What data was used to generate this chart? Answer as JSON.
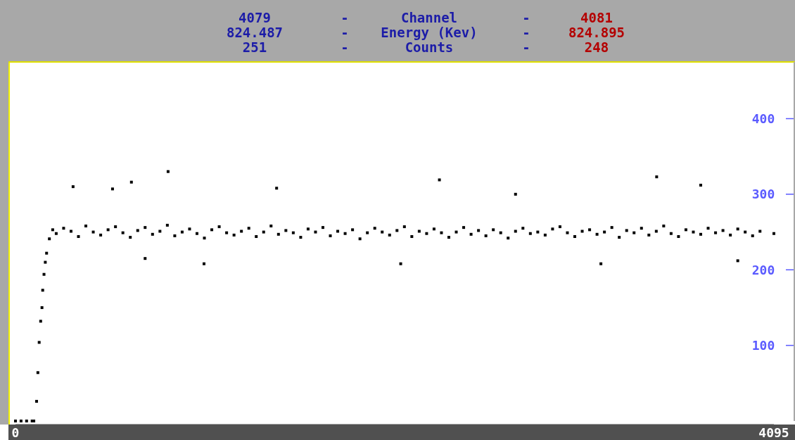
{
  "chart_data": {
    "type": "scatter",
    "annotations": [
      "4079",
      "-",
      "Channel",
      "-",
      "4081",
      "824.487",
      "-",
      "Energy (Kev)",
      "-",
      "824.895",
      "251",
      "-",
      "Counts",
      "-",
      "248"
    ],
    "xlim": [
      0,
      4095
    ],
    "xticks": [
      0,
      4095
    ],
    "ylim": [
      0,
      475
    ],
    "yticks": [
      100,
      200,
      300,
      400
    ],
    "grid": false,
    "marker": "square",
    "series": [
      {
        "color": "#000000",
        "x": [
          0,
          30,
          60,
          90,
          99,
          114,
          121,
          128,
          136,
          143,
          147,
          154,
          161,
          168,
          183,
          201,
          220,
          260,
          300,
          340,
          380,
          420,
          460,
          500,
          540,
          580,
          620,
          660,
          700,
          740,
          780,
          820,
          860,
          900,
          940,
          980,
          1020,
          1060,
          1100,
          1140,
          1180,
          1220,
          1260,
          1300,
          1340,
          1380,
          1420,
          1460,
          1500,
          1540,
          1580,
          1620,
          1660,
          1700,
          1740,
          1780,
          1820,
          1860,
          1900,
          1940,
          1980,
          2020,
          2060,
          2100,
          2140,
          2180,
          2220,
          2260,
          2300,
          2340,
          2380,
          2420,
          2460,
          2500,
          2540,
          2580,
          2620,
          2660,
          2700,
          2740,
          2780,
          2820,
          2860,
          2900,
          2940,
          2980,
          3020,
          3060,
          3100,
          3140,
          3180,
          3220,
          3260,
          3300,
          3340,
          3380,
          3420,
          3460,
          3500,
          3540,
          3580,
          3620,
          3660,
          3700,
          3740,
          3780,
          3820,
          3860,
          3900,
          3940,
          3980,
          4020,
          4095,
          311,
          524,
          626,
          824,
          1410,
          2289,
          3462,
          1018,
          2080,
          3161,
          3900,
          700,
          2700,
          3700
        ],
        "values": [
          0,
          0,
          0,
          0,
          0,
          26,
          64,
          104,
          132,
          150,
          173,
          194,
          210,
          222,
          241,
          253,
          248,
          255,
          251,
          244,
          258,
          250,
          246,
          253,
          257,
          249,
          243,
          252,
          256,
          247,
          251,
          259,
          245,
          250,
          254,
          248,
          242,
          253,
          257,
          249,
          246,
          251,
          255,
          244,
          250,
          258,
          247,
          252,
          249,
          243,
          254,
          250,
          256,
          245,
          251,
          248,
          253,
          241,
          249,
          255,
          250,
          246,
          252,
          257,
          244,
          251,
          248,
          254,
          249,
          243,
          250,
          256,
          247,
          252,
          245,
          253,
          249,
          242,
          251,
          255,
          248,
          250,
          246,
          254,
          257,
          249,
          244,
          251,
          253,
          247,
          250,
          256,
          243,
          252,
          249,
          255,
          246,
          251,
          258,
          248,
          244,
          253,
          250,
          247,
          255,
          249,
          252,
          246,
          254,
          250,
          245,
          251,
          248,
          310,
          307,
          316,
          330,
          308,
          319,
          323,
          208,
          208,
          208,
          212,
          215,
          300,
          312
        ]
      }
    ]
  }
}
